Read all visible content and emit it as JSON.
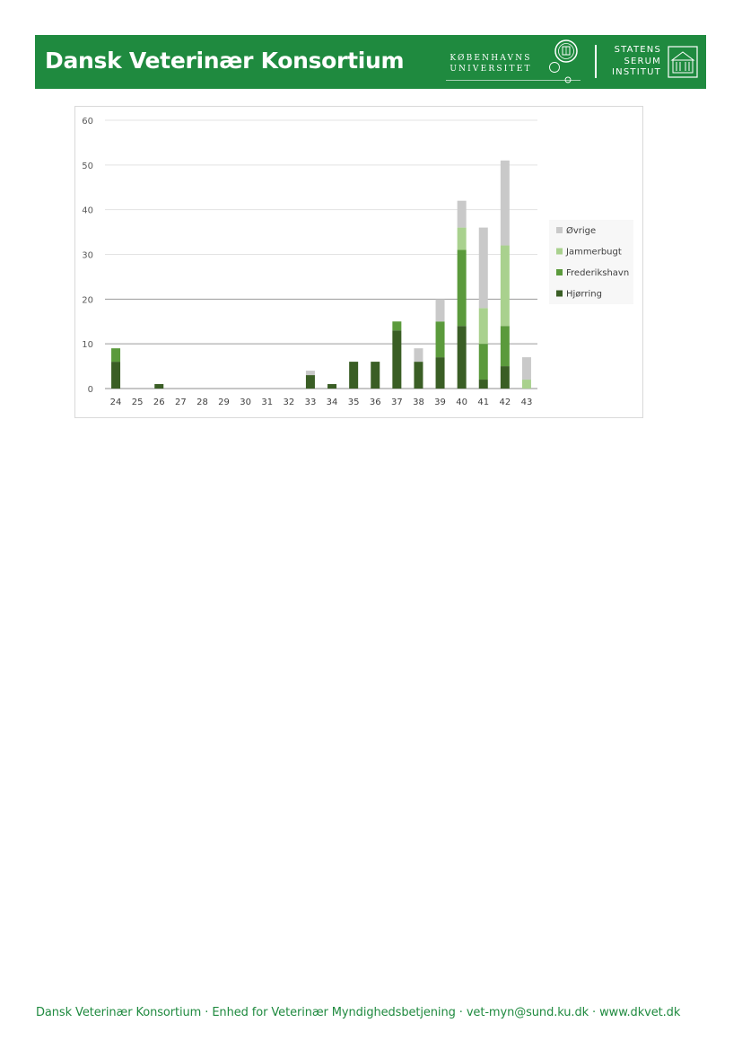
{
  "header": {
    "title": "Dansk Veterinær Konsortium",
    "ku_line1": "KØBENHAVNS",
    "ku_line2": "UNIVERSITET",
    "ssi_line1": "STATENS",
    "ssi_line2": "SERUM",
    "ssi_line3": "INSTITUT",
    "color": "#1f8a3f"
  },
  "chart_data": {
    "type": "bar",
    "stacked": true,
    "categories": [
      "24",
      "25",
      "26",
      "27",
      "28",
      "29",
      "30",
      "31",
      "32",
      "33",
      "34",
      "35",
      "36",
      "37",
      "38",
      "39",
      "40",
      "41",
      "42",
      "43"
    ],
    "series": [
      {
        "name": "Hjørring",
        "color": "#3a5e25",
        "values": [
          6,
          0,
          1,
          0,
          0,
          0,
          0,
          0,
          0,
          3,
          1,
          6,
          6,
          13,
          6,
          7,
          14,
          2,
          5,
          0
        ]
      },
      {
        "name": "Frederikshavn",
        "color": "#5b9a3c",
        "values": [
          3,
          0,
          0,
          0,
          0,
          0,
          0,
          0,
          0,
          0,
          0,
          0,
          0,
          2,
          0,
          8,
          17,
          8,
          9,
          0
        ]
      },
      {
        "name": "Jammerbugt",
        "color": "#a9d18e",
        "values": [
          0,
          0,
          0,
          0,
          0,
          0,
          0,
          0,
          0,
          0,
          0,
          0,
          0,
          0,
          0,
          0,
          5,
          8,
          18,
          2
        ]
      },
      {
        "name": "Øvrige",
        "color": "#c9c9c9",
        "values": [
          0,
          0,
          0,
          0,
          0,
          0,
          0,
          0,
          0,
          1,
          0,
          0,
          0,
          0,
          3,
          5,
          6,
          18,
          19,
          5
        ]
      }
    ],
    "ylim": [
      0,
      60
    ],
    "yticks": [
      0,
      10,
      20,
      30,
      40,
      50,
      60
    ],
    "grid": true,
    "legend": "right",
    "title": "",
    "xlabel": "",
    "ylabel": ""
  },
  "footer": {
    "text": "Dansk Veterinær Konsortium · Enhed for Veterinær Myndighedsbetjening · vet-myn@sund.ku.dk · www.dkvet.dk"
  }
}
